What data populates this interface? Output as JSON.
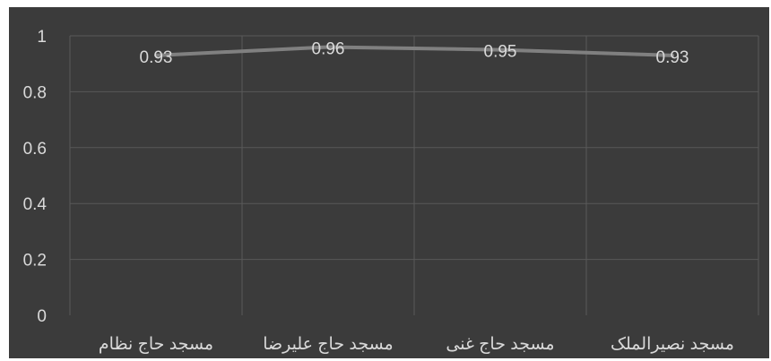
{
  "chart_data": {
    "type": "line",
    "categories": [
      "مسجد حاج نظام",
      "مسجد حاج علیرضا",
      "مسجد حاج غنی",
      "مسجد نصیرالملک"
    ],
    "series": [
      {
        "values": [
          0.93,
          0.96,
          0.95,
          0.93
        ],
        "data_labels": [
          "0.93",
          "0.96",
          "0.95",
          "0.93"
        ]
      }
    ],
    "title": "",
    "xlabel": "",
    "ylabel": "",
    "ylim": [
      0,
      1
    ],
    "y_ticks": [
      0,
      0.2,
      0.4,
      0.6,
      0.8,
      1
    ],
    "y_tick_labels": [
      "0",
      "0.2",
      "0.4",
      "0.6",
      "0.8",
      "1"
    ],
    "grid": true,
    "legend": "none"
  },
  "colors": {
    "plot_background": "#3b3b3b",
    "frame_background": "#ffffff",
    "gridline": "#595959",
    "series_line": "#808080",
    "text": "#d9d9d9"
  }
}
